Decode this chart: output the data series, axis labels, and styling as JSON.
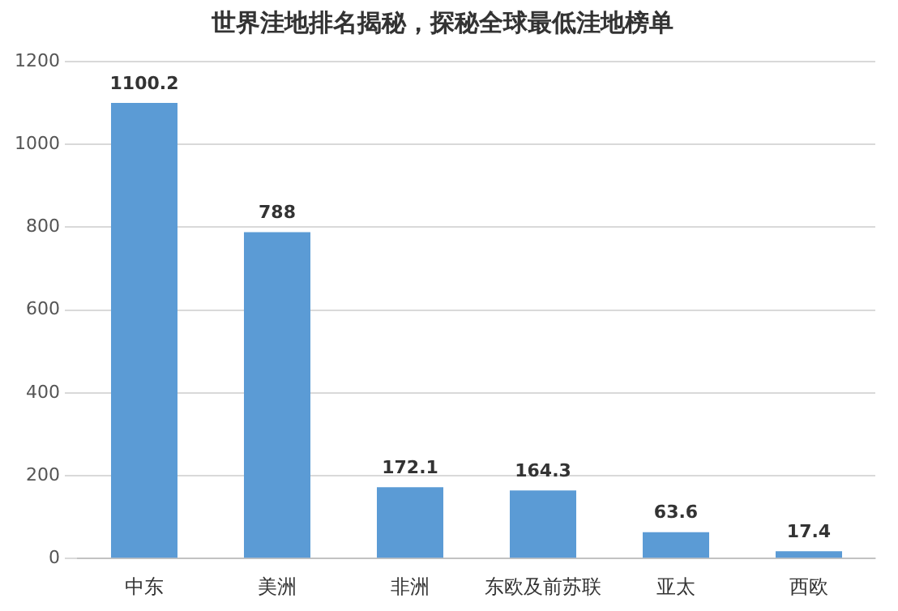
{
  "chart_data": {
    "type": "bar",
    "title": "世界洼地排名揭秘，探秘全球最低洼地榜单",
    "categories": [
      "中东",
      "美洲",
      "非洲",
      "东欧及前苏联",
      "亚太",
      "西欧"
    ],
    "values": [
      1100.2,
      788,
      172.1,
      164.3,
      63.6,
      17.4
    ],
    "color": "#5b9bd5",
    "ylim": [
      0,
      1200
    ],
    "yticks": [
      0,
      200,
      400,
      600,
      800,
      1000,
      1200
    ],
    "grid": "y",
    "data_labels": true
  }
}
